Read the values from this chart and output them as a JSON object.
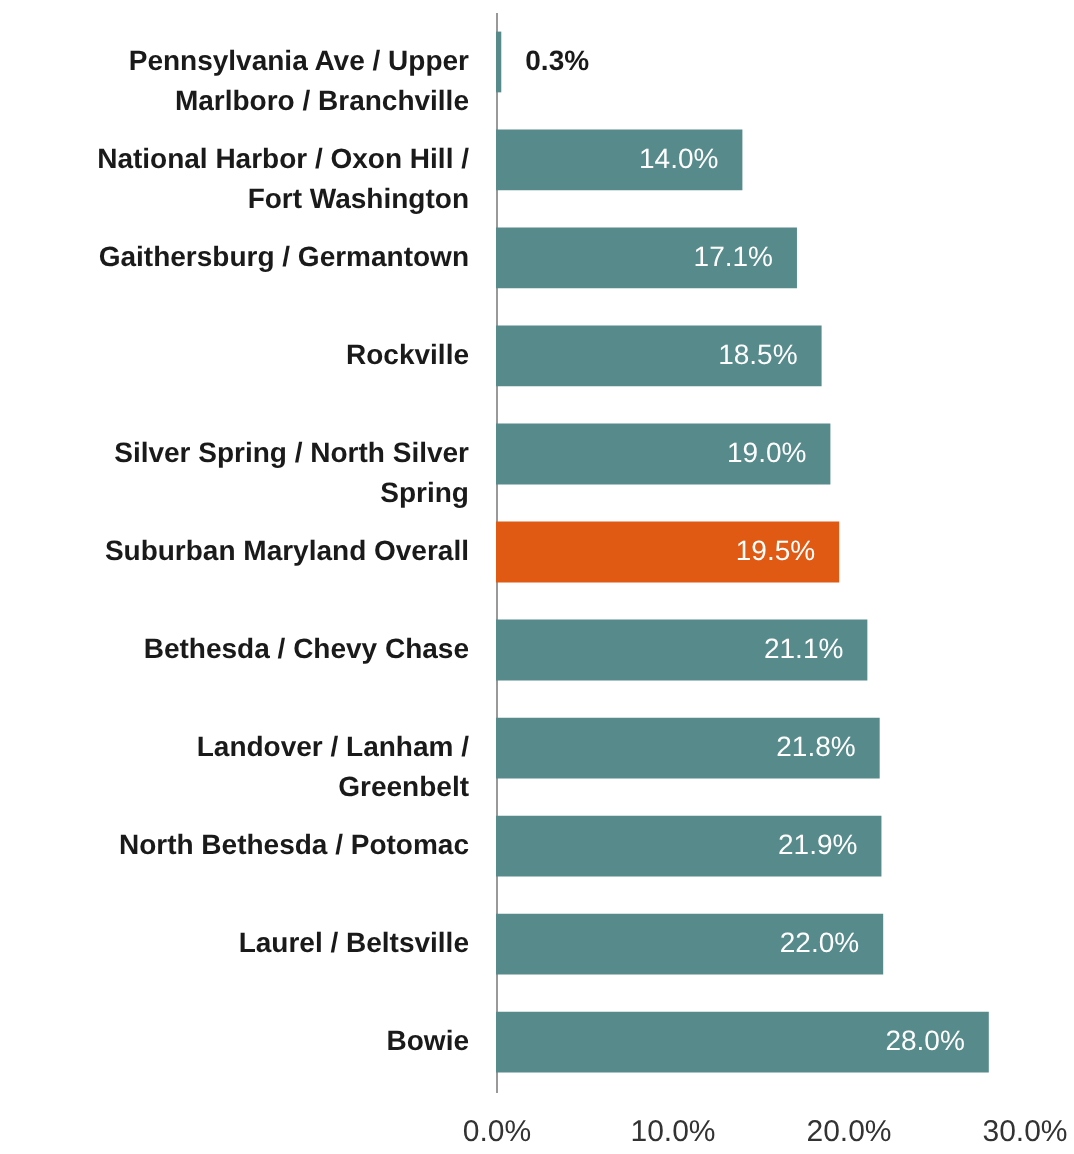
{
  "chart_data": {
    "type": "bar",
    "orientation": "horizontal",
    "categories": [
      "Pennsylvania Ave / Upper Marlboro / Branchville",
      "National Harbor / Oxon Hill / Fort Washington",
      "Gaithersburg / Germantown",
      "Rockville",
      "Silver Spring / North Silver Spring",
      "Suburban Maryland Overall",
      "Bethesda / Chevy Chase",
      "Landover / Lanham / Greenbelt",
      "North Bethesda / Potomac",
      "Laurel / Beltsville",
      "Bowie"
    ],
    "values": [
      0.3,
      14.0,
      17.1,
      18.5,
      19.0,
      19.5,
      21.1,
      21.8,
      21.9,
      22.0,
      28.0
    ],
    "colors": [
      "#568a8b",
      "#568a8b",
      "#568a8b",
      "#568a8b",
      "#568a8b",
      "#e05a14",
      "#568a8b",
      "#568a8b",
      "#568a8b",
      "#568a8b",
      "#568a8b"
    ],
    "value_labels": [
      "0.3%",
      "14.0%",
      "17.1%",
      "18.5%",
      "19.0%",
      "19.5%",
      "21.1%",
      "21.8%",
      "21.9%",
      "22.0%",
      "28.0%"
    ],
    "xlim": [
      0,
      30
    ],
    "xticks": [
      {
        "value": 0,
        "label": "0.0%"
      },
      {
        "value": 10,
        "label": "10.0%"
      },
      {
        "value": 20,
        "label": "20.0%"
      },
      {
        "value": 30,
        "label": "30.0%"
      }
    ],
    "grid": false
  }
}
